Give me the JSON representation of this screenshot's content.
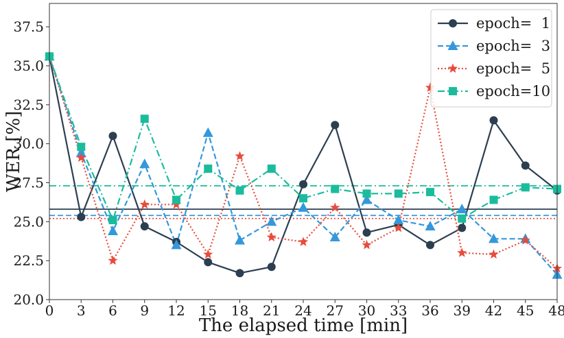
{
  "chart_data": {
    "type": "line",
    "title": "",
    "xlabel": "The elapsed time [min]",
    "ylabel": "WER [%]",
    "xlim": [
      0,
      48
    ],
    "ylim": [
      20.0,
      39.0
    ],
    "grid": false,
    "legend_position": "top-right",
    "x": [
      0,
      3,
      6,
      9,
      12,
      15,
      18,
      21,
      24,
      27,
      30,
      33,
      36,
      39,
      42,
      45,
      48
    ],
    "x_tick_labels": [
      "0",
      "3",
      "6",
      "9",
      "12",
      "15",
      "18",
      "21",
      "24",
      "27",
      "30",
      "33",
      "36",
      "39",
      "42",
      "45",
      "48"
    ],
    "y_ticks": [
      20.0,
      22.5,
      25.0,
      27.5,
      30.0,
      32.5,
      35.0,
      37.5
    ],
    "y_tick_labels": [
      "20.0",
      "22.5",
      "25.0",
      "27.5",
      "30.0",
      "32.5",
      "35.0",
      "37.5"
    ],
    "series": [
      {
        "name": "epoch=  1",
        "color": "#2c3e50",
        "linestyle": "solid",
        "marker": "circle",
        "mean_line": 25.8,
        "values": [
          35.6,
          25.3,
          30.5,
          24.7,
          23.7,
          22.4,
          21.7,
          22.1,
          27.4,
          31.2,
          24.3,
          24.8,
          23.5,
          24.6,
          31.5,
          28.6,
          27.0
        ]
      },
      {
        "name": "epoch=  3",
        "color": "#3498db",
        "linestyle": "dashed",
        "marker": "triangle",
        "mean_line": 25.4,
        "values": [
          35.6,
          29.4,
          24.4,
          28.7,
          23.5,
          30.7,
          23.8,
          25.0,
          25.9,
          24.0,
          26.4,
          25.1,
          24.7,
          25.8,
          23.9,
          23.9,
          21.6
        ]
      },
      {
        "name": "epoch=  5",
        "color": "#e74c3c",
        "linestyle": "dotted",
        "marker": "star",
        "mean_line": 25.2,
        "values": [
          35.6,
          29.1,
          22.5,
          26.1,
          26.1,
          22.9,
          29.2,
          24.0,
          23.7,
          25.9,
          23.5,
          24.6,
          33.6,
          23.0,
          22.9,
          23.8,
          22.0
        ]
      },
      {
        "name": "epoch=10",
        "color": "#1abc9c",
        "linestyle": "dashdot",
        "marker": "square",
        "mean_line": 27.3,
        "values": [
          35.6,
          29.8,
          25.1,
          31.6,
          26.4,
          28.4,
          27.0,
          28.4,
          26.5,
          27.1,
          26.8,
          26.8,
          26.9,
          25.2,
          26.4,
          27.2,
          27.1
        ]
      }
    ]
  }
}
